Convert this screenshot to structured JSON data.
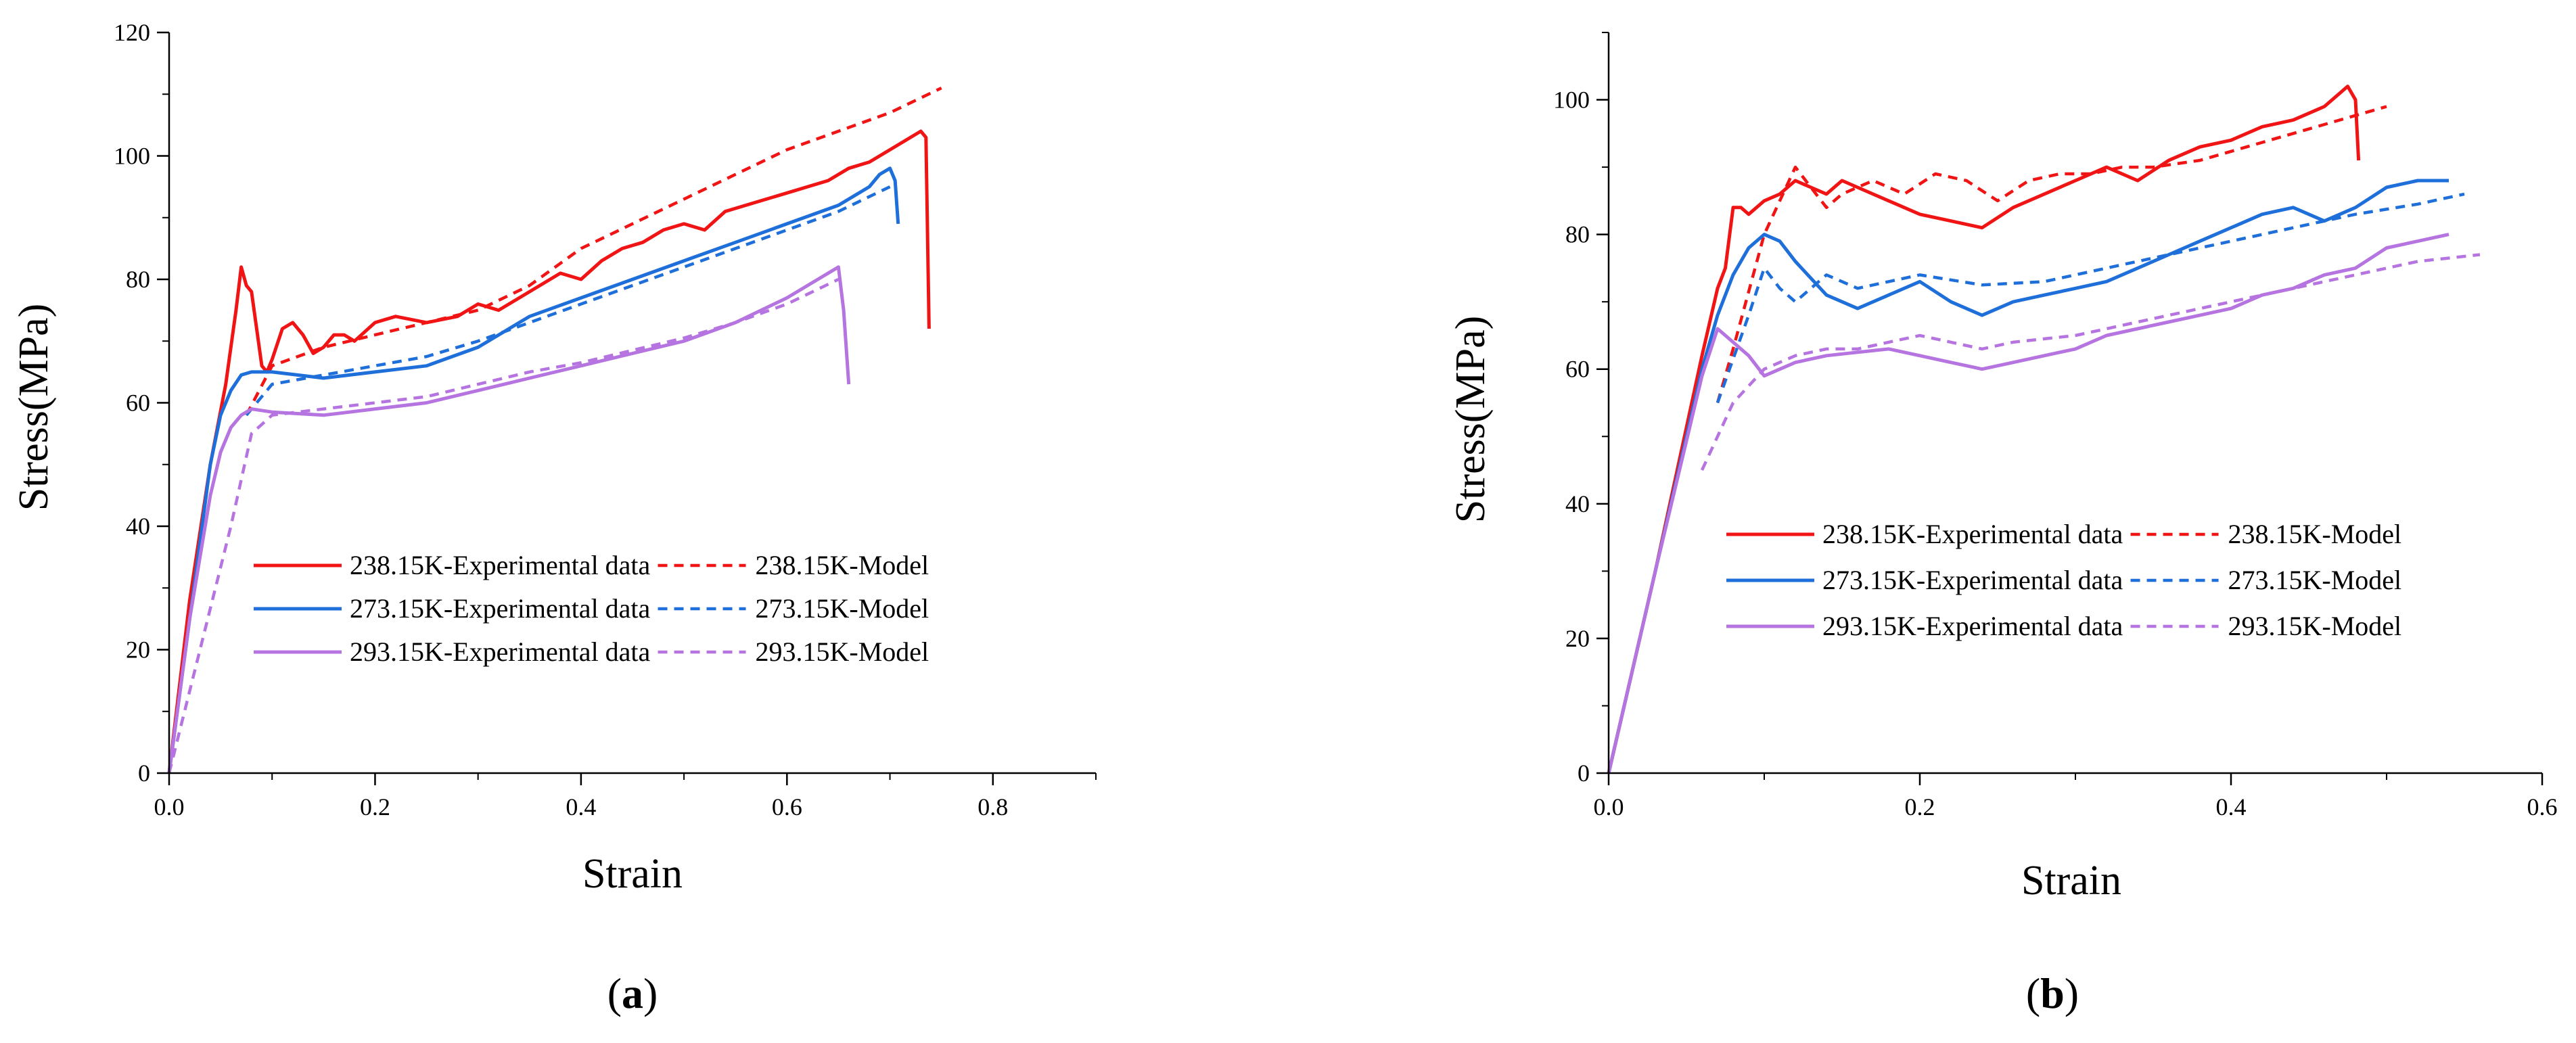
{
  "colors": {
    "238": "#f01414",
    "273": "#1e6fd9",
    "293": "#b574e0",
    "axis": "#000000"
  },
  "chart_data": [
    {
      "type": "line",
      "panel_label": "a",
      "xlabel": "Strain",
      "ylabel": "Stress(MPa)",
      "xlim": [
        0,
        0.9
      ],
      "ylim": [
        0,
        120
      ],
      "xticks": [
        "0.0",
        "0.2",
        "0.4",
        "0.6",
        "0.8"
      ],
      "xtick_values": [
        0,
        0.2,
        0.4,
        0.6,
        0.8
      ],
      "yticks": [
        "0",
        "20",
        "40",
        "60",
        "80",
        "100",
        "120"
      ],
      "ytick_values": [
        0,
        20,
        40,
        60,
        80,
        100,
        120
      ],
      "legend_position": "center",
      "series": [
        {
          "name": "238.15K-Experimental data",
          "temp": "238",
          "style": "solid",
          "x": [
            0,
            0.02,
            0.04,
            0.055,
            0.065,
            0.07,
            0.075,
            0.08,
            0.085,
            0.09,
            0.095,
            0.1,
            0.11,
            0.12,
            0.13,
            0.14,
            0.15,
            0.16,
            0.17,
            0.18,
            0.2,
            0.22,
            0.25,
            0.28,
            0.3,
            0.32,
            0.34,
            0.36,
            0.38,
            0.4,
            0.42,
            0.44,
            0.46,
            0.48,
            0.5,
            0.52,
            0.54,
            0.56,
            0.58,
            0.6,
            0.62,
            0.64,
            0.66,
            0.68,
            0.7,
            0.72,
            0.73,
            0.735,
            0.738
          ],
          "y": [
            0,
            28,
            50,
            63,
            75,
            82,
            79,
            78,
            72,
            66,
            65,
            67,
            72,
            73,
            71,
            68,
            69,
            71,
            71,
            70,
            73,
            74,
            73,
            74,
            76,
            75,
            77,
            79,
            81,
            80,
            83,
            85,
            86,
            88,
            89,
            88,
            91,
            92,
            93,
            94,
            95,
            96,
            98,
            99,
            101,
            103,
            104,
            103,
            72
          ]
        },
        {
          "name": "238.15K-Model",
          "temp": "238",
          "style": "dashed",
          "x": [
            0.075,
            0.1,
            0.15,
            0.2,
            0.25,
            0.3,
            0.35,
            0.4,
            0.45,
            0.5,
            0.55,
            0.6,
            0.65,
            0.7,
            0.75
          ],
          "y": [
            58,
            66,
            69,
            71,
            73,
            75,
            79,
            85,
            89,
            93,
            97,
            101,
            104,
            107,
            111
          ]
        },
        {
          "name": "273.15K-Experimental data",
          "temp": "273",
          "style": "solid",
          "x": [
            0,
            0.02,
            0.04,
            0.05,
            0.06,
            0.07,
            0.08,
            0.1,
            0.15,
            0.2,
            0.25,
            0.3,
            0.35,
            0.4,
            0.45,
            0.5,
            0.55,
            0.6,
            0.65,
            0.68,
            0.69,
            0.7,
            0.705,
            0.708
          ],
          "y": [
            0,
            25,
            50,
            58,
            62,
            64.5,
            65,
            65,
            64,
            65,
            66,
            69,
            74,
            77,
            80,
            83,
            86,
            89,
            92,
            95,
            97,
            98,
            96,
            89
          ]
        },
        {
          "name": "273.15K-Model",
          "temp": "273",
          "style": "dashed",
          "x": [
            0.075,
            0.1,
            0.15,
            0.2,
            0.25,
            0.3,
            0.35,
            0.4,
            0.45,
            0.5,
            0.55,
            0.6,
            0.65,
            0.7
          ],
          "y": [
            58,
            63,
            64.5,
            66,
            67.5,
            70,
            73,
            76,
            79,
            82,
            85,
            88,
            91,
            95
          ]
        },
        {
          "name": "293.15K-Experimental data",
          "temp": "293",
          "style": "solid",
          "x": [
            0,
            0.02,
            0.04,
            0.05,
            0.06,
            0.07,
            0.08,
            0.1,
            0.15,
            0.2,
            0.25,
            0.3,
            0.35,
            0.4,
            0.45,
            0.5,
            0.55,
            0.6,
            0.63,
            0.65,
            0.655,
            0.66
          ],
          "y": [
            0,
            25,
            45,
            52,
            56,
            58,
            59,
            58.5,
            58,
            59,
            60,
            62,
            64,
            66,
            68,
            70,
            73,
            77,
            80,
            82,
            75,
            63
          ]
        },
        {
          "name": "293.15K-Model",
          "temp": "293",
          "style": "dashed",
          "x": [
            0,
            0.03,
            0.06,
            0.08,
            0.1,
            0.15,
            0.2,
            0.25,
            0.3,
            0.35,
            0.4,
            0.45,
            0.5,
            0.55,
            0.6,
            0.65
          ],
          "y": [
            0,
            20,
            40,
            55,
            58,
            59,
            60,
            61,
            63,
            65,
            66.5,
            68.5,
            70.5,
            73,
            76,
            80
          ]
        }
      ]
    },
    {
      "type": "line",
      "panel_label": "b",
      "xlabel": "Strain",
      "ylabel": "Stress(MPa)",
      "xlim": [
        0,
        0.6
      ],
      "ylim": [
        0,
        110
      ],
      "xticks": [
        "0.0",
        "0.2",
        "0.4",
        "0.6"
      ],
      "xtick_values": [
        0,
        0.2,
        0.4,
        0.6
      ],
      "yticks": [
        "0",
        "20",
        "40",
        "60",
        "80",
        "100"
      ],
      "ytick_values": [
        0,
        20,
        40,
        60,
        80,
        100
      ],
      "legend_position": "lower-right",
      "series": [
        {
          "name": "238.15K-Experimental data",
          "temp": "238",
          "style": "solid",
          "x": [
            0,
            0.03,
            0.06,
            0.07,
            0.075,
            0.08,
            0.085,
            0.09,
            0.1,
            0.11,
            0.12,
            0.13,
            0.14,
            0.15,
            0.16,
            0.18,
            0.2,
            0.22,
            0.24,
            0.26,
            0.28,
            0.3,
            0.32,
            0.34,
            0.36,
            0.38,
            0.4,
            0.42,
            0.44,
            0.46,
            0.47,
            0.475,
            0.48,
            0.482
          ],
          "y": [
            0,
            30,
            62,
            72,
            75,
            84,
            84,
            83,
            85,
            86,
            88,
            87,
            86,
            88,
            87,
            85,
            83,
            82,
            81,
            84,
            86,
            88,
            90,
            88,
            91,
            93,
            94,
            96,
            97,
            99,
            101,
            102,
            100,
            91
          ]
        },
        {
          "name": "238.15K-Model",
          "temp": "238",
          "style": "dashed",
          "x": [
            0.07,
            0.08,
            0.1,
            0.12,
            0.13,
            0.14,
            0.15,
            0.17,
            0.19,
            0.21,
            0.23,
            0.25,
            0.27,
            0.29,
            0.31,
            0.33,
            0.35,
            0.38,
            0.41,
            0.44,
            0.47,
            0.5
          ],
          "y": [
            55,
            63,
            80,
            90,
            87,
            84,
            86,
            88,
            86,
            89,
            88,
            85,
            88,
            89,
            89,
            90,
            90,
            91,
            93,
            95,
            97,
            99
          ]
        },
        {
          "name": "273.15K-Experimental data",
          "temp": "273",
          "style": "solid",
          "x": [
            0,
            0.03,
            0.06,
            0.07,
            0.08,
            0.09,
            0.1,
            0.11,
            0.12,
            0.14,
            0.16,
            0.18,
            0.2,
            0.22,
            0.24,
            0.26,
            0.28,
            0.3,
            0.32,
            0.34,
            0.36,
            0.38,
            0.4,
            0.42,
            0.44,
            0.46,
            0.48,
            0.5,
            0.52,
            0.54
          ],
          "y": [
            0,
            30,
            60,
            68,
            74,
            78,
            80,
            79,
            76,
            71,
            69,
            71,
            73,
            70,
            68,
            70,
            71,
            72,
            73,
            75,
            77,
            79,
            81,
            83,
            84,
            82,
            84,
            87,
            88,
            88
          ]
        },
        {
          "name": "273.15K-Model",
          "temp": "273",
          "style": "dashed",
          "x": [
            0.07,
            0.09,
            0.1,
            0.11,
            0.12,
            0.14,
            0.16,
            0.18,
            0.2,
            0.24,
            0.28,
            0.32,
            0.36,
            0.4,
            0.44,
            0.48,
            0.52,
            0.55
          ],
          "y": [
            55,
            68,
            75,
            72,
            70,
            74,
            72,
            73,
            74,
            72.5,
            73,
            75,
            77,
            79,
            81,
            83,
            84.5,
            86
          ]
        },
        {
          "name": "293.15K-Experimental data",
          "temp": "293",
          "style": "solid",
          "x": [
            0,
            0.03,
            0.06,
            0.07,
            0.08,
            0.09,
            0.1,
            0.12,
            0.14,
            0.16,
            0.18,
            0.2,
            0.22,
            0.24,
            0.26,
            0.28,
            0.3,
            0.32,
            0.34,
            0.36,
            0.38,
            0.4,
            0.42,
            0.44,
            0.46,
            0.48,
            0.5,
            0.52,
            0.54
          ],
          "y": [
            0,
            30,
            59,
            66,
            64,
            62,
            59,
            61,
            62,
            62.5,
            63,
            62,
            61,
            60,
            61,
            62,
            63,
            65,
            66,
            67,
            68,
            69,
            71,
            72,
            74,
            75,
            78,
            79,
            80
          ]
        },
        {
          "name": "293.15K-Model",
          "temp": "293",
          "style": "dashed",
          "x": [
            0.06,
            0.08,
            0.1,
            0.12,
            0.14,
            0.16,
            0.18,
            0.2,
            0.22,
            0.24,
            0.26,
            0.28,
            0.3,
            0.32,
            0.36,
            0.4,
            0.44,
            0.48,
            0.52,
            0.56
          ],
          "y": [
            45,
            55,
            60,
            62,
            63,
            63,
            64,
            65,
            64,
            63,
            64,
            64.5,
            65,
            66,
            68,
            70,
            72,
            74,
            76,
            77
          ]
        }
      ]
    }
  ]
}
